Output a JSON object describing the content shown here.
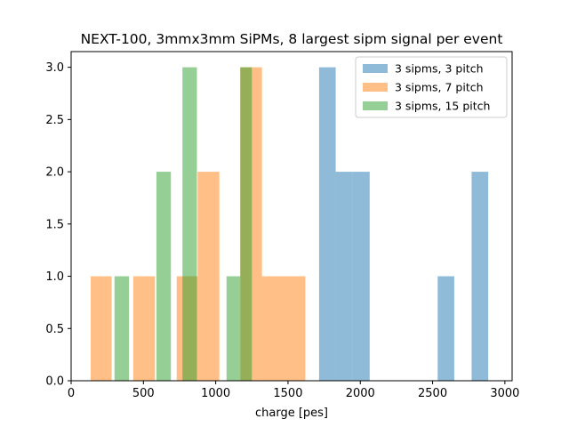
{
  "chart_data": {
    "type": "bar",
    "title": "NEXT-100, 3mmx3mm SiPMs, 8 largest sipm signal per event",
    "xlabel": "charge [pes]",
    "ylabel": "",
    "xlim": [
      0,
      3050
    ],
    "ylim": [
      0,
      3.15
    ],
    "xticks": [
      0,
      500,
      1000,
      1500,
      2000,
      2500,
      3000
    ],
    "xtick_labels": [
      "0",
      "500",
      "1000",
      "1500",
      "2000",
      "2500",
      "3000"
    ],
    "yticks": [
      0,
      0.5,
      1,
      1.5,
      2,
      2.5,
      3
    ],
    "ytick_labels": [
      "0.0",
      "0.5",
      "1.0",
      "1.5",
      "2.0",
      "2.5",
      "3.0"
    ],
    "grid": false,
    "legend_position": "top-right",
    "series": [
      {
        "name": "3 sipms, 3 pitch",
        "color": "#1f77b4",
        "alpha": 0.5,
        "bins": [
          {
            "x0": 1715,
            "x1": 1830,
            "count": 3
          },
          {
            "x0": 1830,
            "x1": 1945,
            "count": 2
          },
          {
            "x0": 1945,
            "x1": 2065,
            "count": 2
          },
          {
            "x0": 2535,
            "x1": 2650,
            "count": 1
          },
          {
            "x0": 2770,
            "x1": 2885,
            "count": 2
          }
        ]
      },
      {
        "name": "3 sipms, 7 pitch",
        "color": "#ff7f0e",
        "alpha": 0.5,
        "bins": [
          {
            "x0": 135,
            "x1": 280,
            "count": 1
          },
          {
            "x0": 430,
            "x1": 580,
            "count": 1
          },
          {
            "x0": 730,
            "x1": 875,
            "count": 1
          },
          {
            "x0": 875,
            "x1": 1025,
            "count": 2
          },
          {
            "x0": 1170,
            "x1": 1320,
            "count": 3
          },
          {
            "x0": 1320,
            "x1": 1470,
            "count": 1
          },
          {
            "x0": 1470,
            "x1": 1620,
            "count": 1
          }
        ]
      },
      {
        "name": "3 sipms, 15 pitch",
        "color": "#2ca02c",
        "alpha": 0.5,
        "bins": [
          {
            "x0": 300,
            "x1": 400,
            "count": 1
          },
          {
            "x0": 590,
            "x1": 690,
            "count": 2
          },
          {
            "x0": 770,
            "x1": 870,
            "count": 3
          },
          {
            "x0": 1075,
            "x1": 1170,
            "count": 1
          },
          {
            "x0": 1170,
            "x1": 1250,
            "count": 3
          }
        ]
      }
    ]
  }
}
